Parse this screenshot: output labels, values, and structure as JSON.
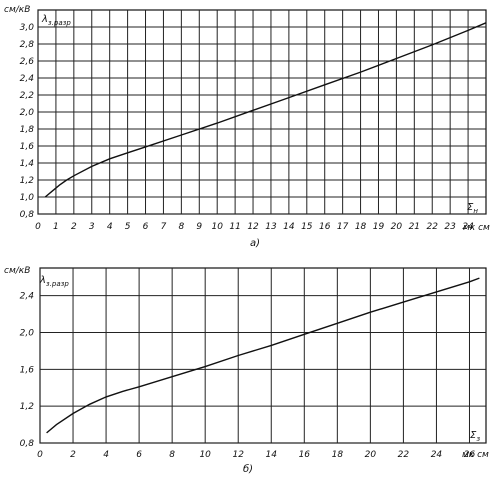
{
  "chart_data": [
    {
      "type": "line",
      "caption": "а)",
      "y_unit": "см/кВ",
      "y_symbol": "λ",
      "y_symbol_sub": "з.разр",
      "x_symbol": "Σ",
      "x_symbol_sub": "н",
      "x_unit": "мк см",
      "grid": true,
      "xlim": [
        0,
        25
      ],
      "ylim": [
        0.8,
        3.2
      ],
      "x_ticks": [
        "0",
        "1",
        "2",
        "3",
        "4",
        "5",
        "6",
        "7",
        "8",
        "9",
        "10",
        "11",
        "12",
        "13",
        "14",
        "15",
        "16",
        "17",
        "18",
        "19",
        "20",
        "21",
        "22",
        "23",
        "24"
      ],
      "x_tick_values": [
        0,
        1,
        2,
        3,
        4,
        5,
        6,
        7,
        8,
        9,
        10,
        11,
        12,
        13,
        14,
        15,
        16,
        17,
        18,
        19,
        20,
        21,
        22,
        23,
        24
      ],
      "y_ticks": [
        "0,8",
        "1,0",
        "1,2",
        "1,4",
        "1,6",
        "1,8",
        "2,0",
        "2,2",
        "2,4",
        "2,6",
        "2,8",
        "3,0"
      ],
      "y_tick_values": [
        0.8,
        1.0,
        1.2,
        1.4,
        1.6,
        1.8,
        2.0,
        2.2,
        2.4,
        2.6,
        2.8,
        3.0
      ],
      "series": [
        {
          "x": [
            0.4,
            0.8,
            1.2,
            1.6,
            2,
            3,
            4,
            5,
            6,
            8,
            10,
            12,
            14,
            16,
            18,
            20,
            22,
            24,
            25
          ],
          "y": [
            1.0,
            1.07,
            1.14,
            1.2,
            1.25,
            1.36,
            1.45,
            1.52,
            1.59,
            1.73,
            1.87,
            2.02,
            2.17,
            2.32,
            2.47,
            2.63,
            2.79,
            2.96,
            3.05
          ]
        }
      ]
    },
    {
      "type": "line",
      "caption": "б)",
      "y_unit": "см/кВ",
      "y_symbol": "λ",
      "y_symbol_sub": "з.разр",
      "x_symbol": "Σ",
      "x_symbol_sub": "з",
      "x_unit": "мк см",
      "grid": true,
      "xlim": [
        0,
        27
      ],
      "ylim": [
        0.8,
        2.7
      ],
      "x_ticks": [
        "0",
        "2",
        "4",
        "6",
        "8",
        "10",
        "12",
        "14",
        "16",
        "18",
        "20",
        "22",
        "24",
        "26"
      ],
      "x_tick_values": [
        0,
        2,
        4,
        6,
        8,
        10,
        12,
        14,
        16,
        18,
        20,
        22,
        24,
        26
      ],
      "y_ticks": [
        "0,8",
        "1,2",
        "1,6",
        "2,0",
        "2,4"
      ],
      "y_tick_values": [
        0.8,
        1.2,
        1.6,
        2.0,
        2.4
      ],
      "series": [
        {
          "x": [
            0.4,
            1,
            2,
            3,
            4,
            5,
            6,
            8,
            10,
            12,
            14,
            16,
            18,
            20,
            22,
            24,
            26,
            26.6
          ],
          "y": [
            0.91,
            1.0,
            1.12,
            1.22,
            1.3,
            1.36,
            1.41,
            1.52,
            1.63,
            1.75,
            1.86,
            1.98,
            2.1,
            2.22,
            2.33,
            2.44,
            2.55,
            2.59
          ]
        }
      ]
    }
  ]
}
